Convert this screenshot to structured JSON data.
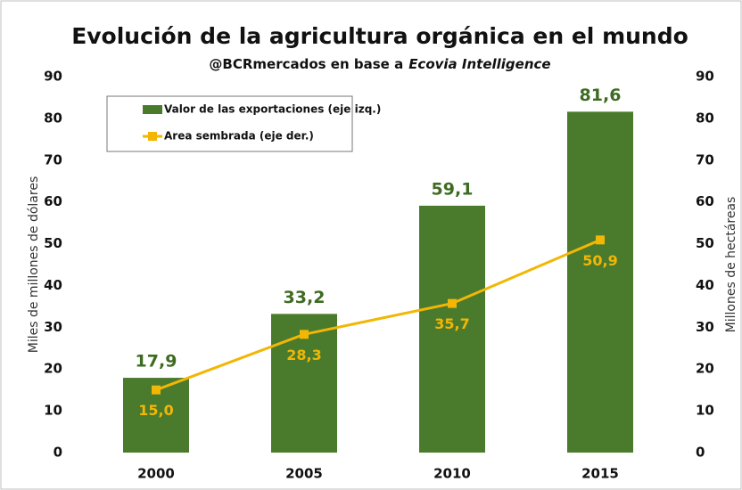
{
  "chart_data": {
    "type": "bar",
    "title": "Evolución de la agricultura orgánica en el mundo",
    "subtitle": [
      "@BCRmercados en base a",
      "Ecovia Intelligence"
    ],
    "ylabel": "Miles de millones de dólares",
    "y2label": "Millones de hectáreas",
    "categories": [
      "2000",
      "2005",
      "2010",
      "2015"
    ],
    "series": [
      {
        "name": "Valor de las exportaciones (eje izq.)",
        "type": "bar",
        "color": "#4a7a2c",
        "values": [
          17.9,
          33.2,
          59.1,
          81.6
        ],
        "value_labels": [
          "17,9",
          "33,2",
          "59,1",
          "81,6"
        ]
      },
      {
        "name": "Area sembrada (eje der.)",
        "type": "line",
        "axis": "y2",
        "color": "#f2b705",
        "values": [
          15.0,
          28.3,
          35.7,
          50.9
        ],
        "value_labels": [
          "15,0",
          "28,3",
          "35,7",
          "50,9"
        ]
      }
    ],
    "ylim": [
      0,
      90
    ],
    "yticks": [
      0,
      10,
      20,
      30,
      40,
      50,
      60,
      70,
      80,
      90
    ],
    "y2lim": [
      0,
      90
    ],
    "y2ticks": [
      0,
      10,
      20,
      30,
      40,
      50,
      60,
      70,
      80,
      90
    ],
    "legend": "upper left"
  }
}
